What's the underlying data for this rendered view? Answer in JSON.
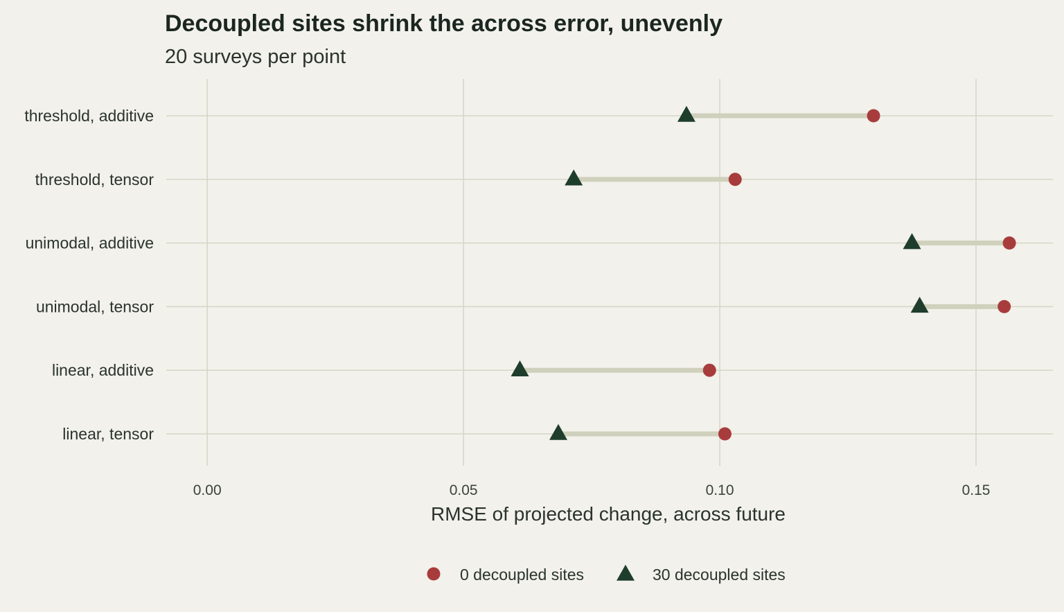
{
  "chart_data": {
    "type": "dumbbell",
    "title": "Decoupled sites shrink the across error, unevenly",
    "subtitle": "20 surveys per point",
    "xlabel": "RMSE of projected change, across future",
    "ylabel": "",
    "xlim": [
      -0.008,
      0.165
    ],
    "xticks": [
      0.0,
      0.05,
      0.1,
      0.15
    ],
    "xtick_labels": [
      "0.00",
      "0.05",
      "0.10",
      "0.15"
    ],
    "grid": true,
    "legend_position": "bottom",
    "categories": [
      "threshold, additive",
      "threshold, tensor",
      "unimodal, additive",
      "unimodal, tensor",
      "linear, additive",
      "linear, tensor"
    ],
    "series": [
      {
        "name": "0 decoupled sites",
        "marker": "circle",
        "color": "#a83c3c",
        "values": [
          0.13,
          0.103,
          0.1565,
          0.1555,
          0.098,
          0.101
        ]
      },
      {
        "name": "30 decoupled sites",
        "marker": "triangle",
        "color": "#1f3d2b",
        "values": [
          0.0935,
          0.0715,
          0.1375,
          0.139,
          0.061,
          0.0685
        ]
      }
    ]
  }
}
